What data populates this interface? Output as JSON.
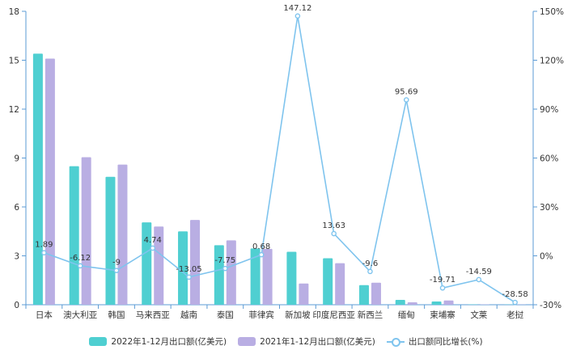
{
  "chart_data": {
    "type": "bar",
    "categories": [
      "日本",
      "澳大利亚",
      "韩国",
      "马来西亚",
      "越南",
      "泰国",
      "菲律宾",
      "新加坡",
      "印度尼西亚",
      "新西兰",
      "缅甸",
      "柬埔寨",
      "文莱",
      "老挝"
    ],
    "series": [
      {
        "name": "2022年1-12月出口额(亿美元)",
        "type": "bar",
        "axis": "left",
        "color": "#4fcfd1",
        "values": [
          15.4,
          8.5,
          7.85,
          5.05,
          4.5,
          3.65,
          3.45,
          3.25,
          2.85,
          1.2,
          0.3,
          0.2,
          0.02,
          0.01
        ]
      },
      {
        "name": "2021年1-12月出口额(亿美元)",
        "type": "bar",
        "axis": "left",
        "color": "#b9aee3",
        "values": [
          15.1,
          9.05,
          8.6,
          4.8,
          5.2,
          3.95,
          3.43,
          1.3,
          2.55,
          1.35,
          0.15,
          0.26,
          0.02,
          0.01
        ]
      },
      {
        "name": "出口额同比增长(%)",
        "type": "line",
        "axis": "right",
        "color": "#7fc4ee",
        "values": [
          1.89,
          -6.12,
          -9,
          4.74,
          -13.05,
          -7.75,
          0.68,
          147.12,
          13.63,
          -9.6,
          95.69,
          -19.71,
          -14.59,
          -28.58
        ],
        "labels": [
          "1.89",
          "-6.12",
          "-9",
          "4.74",
          "-13.05",
          "-7.75",
          "0.68",
          "147.12",
          "13.63",
          "-9.6",
          "95.69",
          "-19.71",
          "-14.59",
          "-28.58"
        ]
      }
    ],
    "y_left": {
      "min": 0,
      "max": 18,
      "ticks": [
        "0",
        "3",
        "6",
        "9",
        "12",
        "15",
        "18"
      ]
    },
    "y_right": {
      "min": -30,
      "max": 150,
      "ticks": [
        "-30%",
        "0%",
        "30%",
        "60%",
        "90%",
        "120%",
        "150%"
      ]
    },
    "grid": false,
    "legend_position": "bottom"
  },
  "colors": {
    "axis": "#5b9bd5",
    "bar2022": "#4fcfd1",
    "bar2021": "#b9aee3",
    "line": "#7fc4ee"
  }
}
